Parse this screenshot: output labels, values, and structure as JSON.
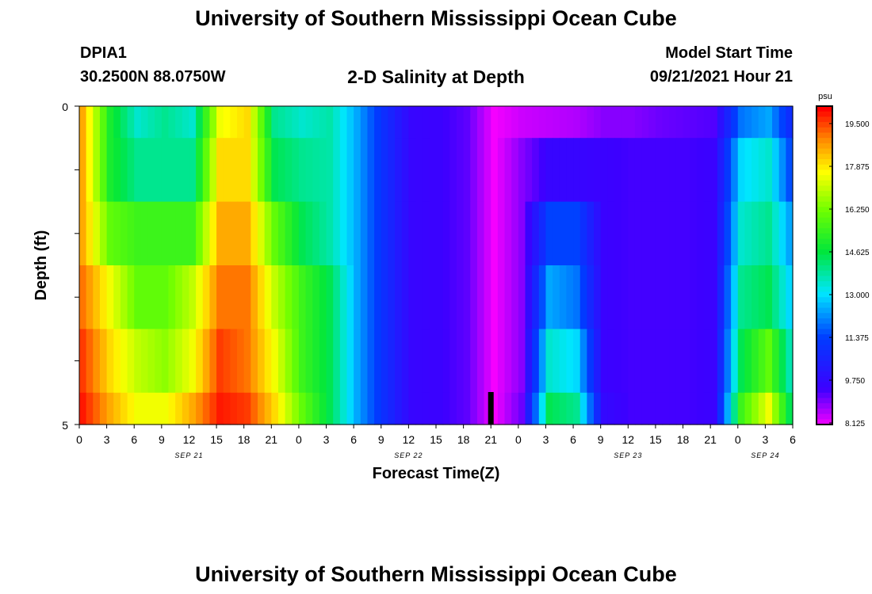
{
  "header": {
    "title_top": "University of Southern Mississippi Ocean Cube",
    "title_bottom": "University of Southern Mississippi Ocean Cube",
    "station": "DPIA1",
    "coords": "30.2500N  88.0750W",
    "plot_title": "2-D Salinity at Depth",
    "start_label": "Model Start Time",
    "start_value": "09/21/2021 Hour 21"
  },
  "chart_data": {
    "type": "heatmap",
    "title": "2-D Salinity at Depth",
    "xlabel": "Forecast Time(Z)",
    "ylabel": "Depth (ft)",
    "units": "psu",
    "y_ticks": [
      "0",
      "5"
    ],
    "ylim": [
      0,
      5
    ],
    "x_tick_labels": [
      "0",
      "3",
      "6",
      "9",
      "12",
      "15",
      "18",
      "21",
      "0",
      "3",
      "6",
      "9",
      "12",
      "15",
      "18",
      "21",
      "0",
      "3",
      "6",
      "9",
      "12",
      "15",
      "18",
      "21",
      "0",
      "3",
      "6"
    ],
    "day_labels": [
      {
        "text": "SEP 21",
        "tick_index": 4
      },
      {
        "text": "SEP 22",
        "tick_index": 12
      },
      {
        "text": "SEP 23",
        "tick_index": 20
      },
      {
        "text": "SEP 24",
        "tick_index": 25
      }
    ],
    "color_scale": {
      "min": 8.125,
      "max": 20.0,
      "ticks": [
        "19.500",
        "17.875",
        "16.250",
        "14.625",
        "13.000",
        "11.375",
        "9.750",
        "8.125"
      ]
    },
    "model_start_marker_hours": 21,
    "depth_layers": [
      0,
      0.5,
      1.5,
      2.5,
      3.5,
      4.5,
      5
    ],
    "hours": [
      0,
      3,
      6,
      9,
      12,
      15,
      18,
      21,
      24,
      27,
      30,
      33,
      36,
      39,
      42,
      45,
      48,
      51,
      54,
      57,
      60,
      63,
      66,
      69,
      72,
      75,
      78
    ],
    "salinity_rows": [
      [
        18.5,
        15.0,
        13.5,
        14.0,
        13.5,
        17.5,
        18.0,
        14.0,
        13.5,
        13.8,
        12.5,
        11.0,
        9.7,
        9.6,
        9.3,
        8.2,
        8.5,
        8.6,
        8.7,
        9.0,
        9.0,
        9.2,
        9.3,
        9.4,
        12.0,
        12.5,
        10.5
      ],
      [
        18.5,
        15.0,
        14.0,
        14.0,
        14.0,
        18.0,
        18.0,
        14.5,
        14.0,
        13.8,
        12.5,
        11.0,
        9.7,
        9.6,
        9.3,
        8.2,
        9.0,
        9.7,
        9.7,
        9.6,
        9.5,
        9.5,
        9.5,
        9.6,
        13.0,
        13.5,
        11.0
      ],
      [
        18.5,
        16.0,
        15.5,
        15.5,
        15.5,
        18.5,
        18.5,
        16.0,
        14.5,
        13.8,
        12.5,
        11.0,
        9.7,
        9.6,
        9.3,
        8.2,
        9.0,
        11.5,
        11.5,
        9.6,
        9.5,
        9.5,
        9.5,
        9.6,
        13.5,
        14.0,
        12.0
      ],
      [
        19.0,
        17.5,
        16.0,
        16.0,
        17.0,
        19.0,
        19.0,
        17.0,
        15.5,
        14.5,
        12.5,
        11.0,
        9.7,
        9.6,
        9.3,
        8.2,
        9.0,
        12.5,
        12.0,
        9.6,
        9.5,
        9.5,
        9.5,
        9.6,
        14.0,
        14.5,
        12.5
      ],
      [
        19.5,
        18.0,
        17.0,
        16.5,
        17.5,
        19.5,
        19.0,
        17.5,
        15.5,
        14.5,
        12.5,
        11.0,
        9.7,
        9.6,
        9.3,
        8.2,
        9.0,
        13.5,
        13.0,
        9.6,
        9.5,
        9.5,
        9.5,
        9.6,
        14.5,
        16.0,
        13.0
      ],
      [
        19.8,
        18.5,
        17.5,
        17.5,
        18.5,
        19.8,
        19.5,
        18.0,
        16.0,
        14.5,
        12.5,
        11.0,
        9.7,
        9.6,
        9.3,
        8.2,
        9.2,
        14.5,
        14.0,
        9.8,
        9.5,
        9.5,
        9.5,
        9.6,
        15.5,
        17.5,
        13.5
      ]
    ]
  }
}
